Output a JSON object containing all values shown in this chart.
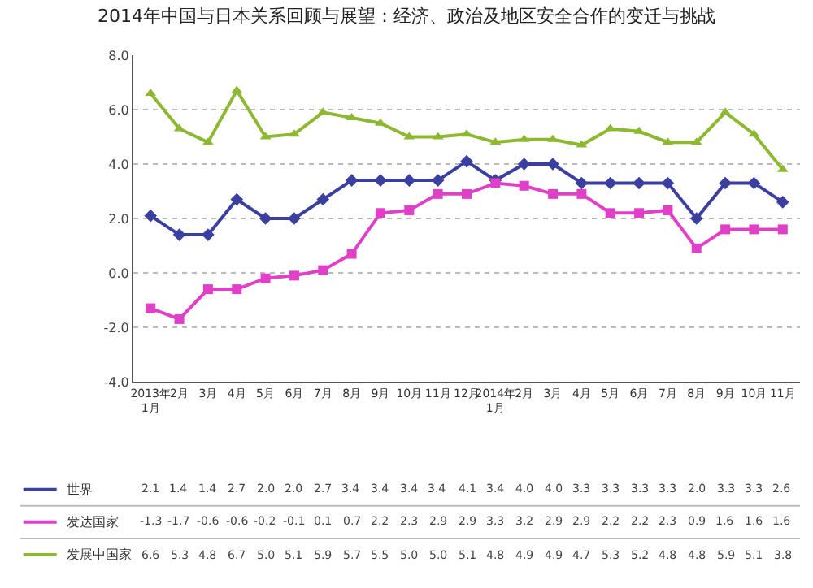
{
  "chart_data": {
    "type": "line",
    "title": "2014年中国与日本关系回顾与展望：经济、政治及地区安全合作的变迁与挑战",
    "categories": [
      "2013年\n1月",
      "2月",
      "3月",
      "4月",
      "5月",
      "6月",
      "7月",
      "8月",
      "9月",
      "10月",
      "11月",
      "12月",
      "2014年\n1月",
      "2月",
      "3月",
      "4月",
      "5月",
      "6月",
      "7月",
      "8月",
      "9月",
      "10月",
      "11月"
    ],
    "series": [
      {
        "name": "世界",
        "color": "#3a3fa0",
        "marker": "diamond",
        "values": [
          2.1,
          1.4,
          1.4,
          2.7,
          2.0,
          2.0,
          2.7,
          3.4,
          3.4,
          3.4,
          3.4,
          4.1,
          3.4,
          4.0,
          4.0,
          3.3,
          3.3,
          3.3,
          3.3,
          2.0,
          3.3,
          3.3,
          2.6
        ],
        "value_labels": [
          "2.1",
          "1.4",
          "1.4",
          "2.7",
          "2.0",
          "2.0",
          "2.7",
          "3.4",
          "3.4",
          "3.4",
          "3.4",
          "4.1",
          "3.4",
          "4.0",
          "4.0",
          "3.3",
          "3.3",
          "3.3",
          "3.3",
          "2.0",
          "3.3",
          "3.3",
          "2.6"
        ]
      },
      {
        "name": "发达国家",
        "color": "#e040c8",
        "marker": "square",
        "values": [
          -1.3,
          -1.7,
          -0.6,
          -0.6,
          -0.2,
          -0.1,
          0.1,
          0.7,
          2.2,
          2.3,
          2.9,
          2.9,
          3.3,
          3.2,
          2.9,
          2.9,
          2.2,
          2.2,
          2.3,
          0.9,
          1.6,
          1.6,
          1.6
        ],
        "value_labels": [
          "-1.3",
          "-1.7",
          "-0.6",
          "-0.6",
          "-0.2",
          "-0.1",
          "0.1",
          "0.7",
          "2.2",
          "2.3",
          "2.9",
          "2.9",
          "3.3",
          "3.2",
          "2.9",
          "2.9",
          "2.2",
          "2.2",
          "2.3",
          "0.9",
          "1.6",
          "1.6",
          "1.6"
        ]
      },
      {
        "name": "发展中国家",
        "color": "#8db832",
        "marker": "triangle",
        "values": [
          6.6,
          5.3,
          4.8,
          6.7,
          5.0,
          5.1,
          5.9,
          5.7,
          5.5,
          5.0,
          5.0,
          5.1,
          4.8,
          4.9,
          4.9,
          4.7,
          5.3,
          5.2,
          4.8,
          4.8,
          5.9,
          5.1,
          3.8
        ],
        "value_labels": [
          "6.6",
          "5.3",
          "4.8",
          "6.7",
          "5.0",
          "5.1",
          "5.9",
          "5.7",
          "5.5",
          "5.0",
          "5.0",
          "5.1",
          "4.8",
          "4.9",
          "4.9",
          "4.7",
          "5.3",
          "5.2",
          "4.8",
          "4.8",
          "5.9",
          "5.1",
          "3.8"
        ]
      }
    ],
    "ylim": [
      -4,
      8
    ],
    "yticks": [
      {
        "value": -4,
        "label": "-4.0"
      },
      {
        "value": -2,
        "label": "-2.0"
      },
      {
        "value": 0,
        "label": "0.0"
      },
      {
        "value": 2,
        "label": "2.0"
      },
      {
        "value": 4,
        "label": "4.0"
      },
      {
        "value": 6,
        "label": "6.0"
      },
      {
        "value": 8,
        "label": "8.0"
      }
    ],
    "grid": "y",
    "legend": "bottom",
    "line_style": "solid"
  }
}
